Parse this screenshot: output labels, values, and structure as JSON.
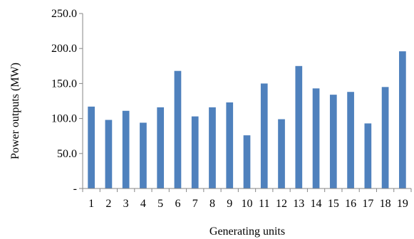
{
  "chart_data": {
    "type": "bar",
    "title": "",
    "xlabel": "Generating units",
    "ylabel": "Power outputs (MW)",
    "categories": [
      "1",
      "2",
      "3",
      "4",
      "5",
      "6",
      "7",
      "8",
      "9",
      "10",
      "11",
      "12",
      "13",
      "14",
      "15",
      "16",
      "17",
      "18",
      "19"
    ],
    "values": [
      117,
      98,
      111,
      94,
      116,
      168,
      103,
      116,
      123,
      76,
      150,
      99,
      175,
      143,
      134,
      138,
      93,
      145,
      196
    ],
    "ylim": [
      0,
      250
    ],
    "yticks": [
      0,
      50,
      100,
      150,
      200,
      250
    ],
    "ytick_labels": [
      "-",
      "50.0",
      "100.0",
      "150.0",
      "200.0",
      "250.0"
    ],
    "grid": false,
    "legend": "none",
    "bar_color": "#4f81bd",
    "axis_color": "#868686"
  }
}
